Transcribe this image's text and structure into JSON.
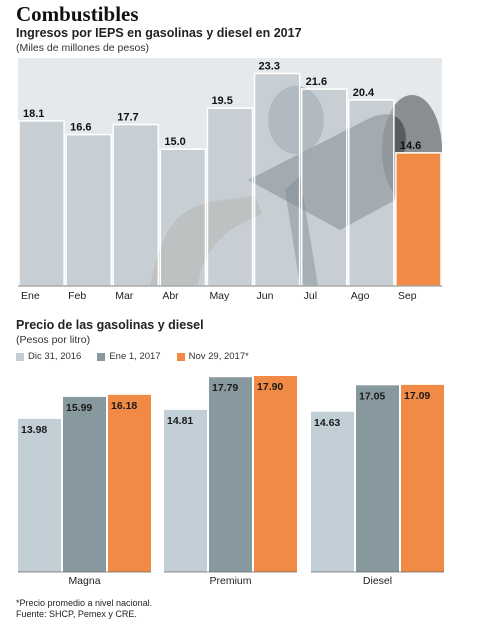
{
  "header": {
    "title": "Combustibles"
  },
  "chart_data": [
    {
      "type": "bar",
      "title": "Ingresos por IEPS en gasolinas y diesel en 2017",
      "subtitle": "(Miles de millones de pesos)",
      "categories": [
        "Ene",
        "Feb",
        "Mar",
        "Abr",
        "May",
        "Jun",
        "Jul",
        "Ago",
        "Sep"
      ],
      "values": [
        18.1,
        16.6,
        17.7,
        15.0,
        19.5,
        23.3,
        21.6,
        20.4,
        14.6
      ],
      "value_labels": [
        "18.1",
        "16.6",
        "17.7",
        "15.0",
        "19.5",
        "23.3",
        "21.6",
        "20.4",
        "14.6"
      ],
      "highlight_index": 8,
      "ylim": [
        0,
        25
      ],
      "colors": {
        "bar": "#b3bfc7",
        "highlight": "#f08a44"
      },
      "grid": false,
      "background_image": "fuel-nozzle-photo"
    },
    {
      "type": "bar",
      "title": "Precio de las gasolinas y diesel",
      "subtitle": "(Pesos por litro)",
      "categories": [
        "Magna",
        "Premium",
        "Diesel"
      ],
      "series": [
        {
          "name": "Dic 31, 2016",
          "values": [
            13.98,
            14.81,
            14.63
          ],
          "labels": [
            "13.98",
            "14.81",
            "14.63"
          ],
          "color": "#c3cfd6"
        },
        {
          "name": "Ene 1, 2017",
          "values": [
            15.99,
            17.79,
            17.05
          ],
          "labels": [
            "15.99",
            "17.79",
            "17.05"
          ],
          "color": "#87999f"
        },
        {
          "name": "Nov 29, 2017*",
          "values": [
            16.18,
            17.9,
            17.09
          ],
          "labels": [
            "16.18",
            "17.90",
            "17.09"
          ],
          "color": "#f08a44"
        }
      ],
      "ylim": [
        0,
        20
      ],
      "legend": "top-left",
      "grid": false
    }
  ],
  "footer": {
    "note": "*Precio promedio a nivel nacional.",
    "source": "Fuente: SHCP, Pemex y CRE."
  }
}
